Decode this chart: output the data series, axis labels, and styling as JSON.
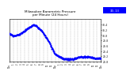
{
  "title": "Milwaukee Barometric Pressure\nper Minute (24 Hours)",
  "bg_color": "#FFFFFF",
  "plot_bg_color": "#FFFFFF",
  "line_color": "#0000FF",
  "grid_color": "#AAAAAA",
  "text_color": "#000000",
  "ylim": [
    29.0,
    30.6
  ],
  "xlim": [
    0,
    1440
  ],
  "yticks": [
    29.0,
    29.2,
    29.4,
    29.6,
    29.8,
    30.0,
    30.2,
    30.4
  ],
  "ytick_labels": [
    "29.0",
    "29.2",
    "29.4",
    "29.6",
    "29.8",
    "30.0",
    "30.2",
    "30.4"
  ],
  "vgrid_positions": [
    60,
    120,
    180,
    240,
    300,
    360,
    420,
    480,
    540,
    600,
    660,
    720,
    780,
    840,
    900,
    960,
    1020,
    1080,
    1140,
    1200,
    1260,
    1320,
    1380
  ],
  "xtick_positions": [
    0,
    60,
    120,
    180,
    240,
    300,
    360,
    420,
    480,
    540,
    600,
    660,
    720,
    780,
    840,
    900,
    960,
    1020,
    1080,
    1140,
    1200,
    1260,
    1320,
    1380,
    1440
  ],
  "xtick_labels": [
    "12a",
    "1",
    "2",
    "3",
    "4",
    "5",
    "6",
    "7",
    "8",
    "9",
    "10",
    "11",
    "12p",
    "1",
    "2",
    "3",
    "4",
    "5",
    "6",
    "7",
    "8",
    "9",
    "10",
    "11",
    "12a"
  ],
  "legend_box": {
    "color": "#0000FF"
  },
  "legend_text": "30.13",
  "marker_size": 1.8,
  "seed": 42
}
